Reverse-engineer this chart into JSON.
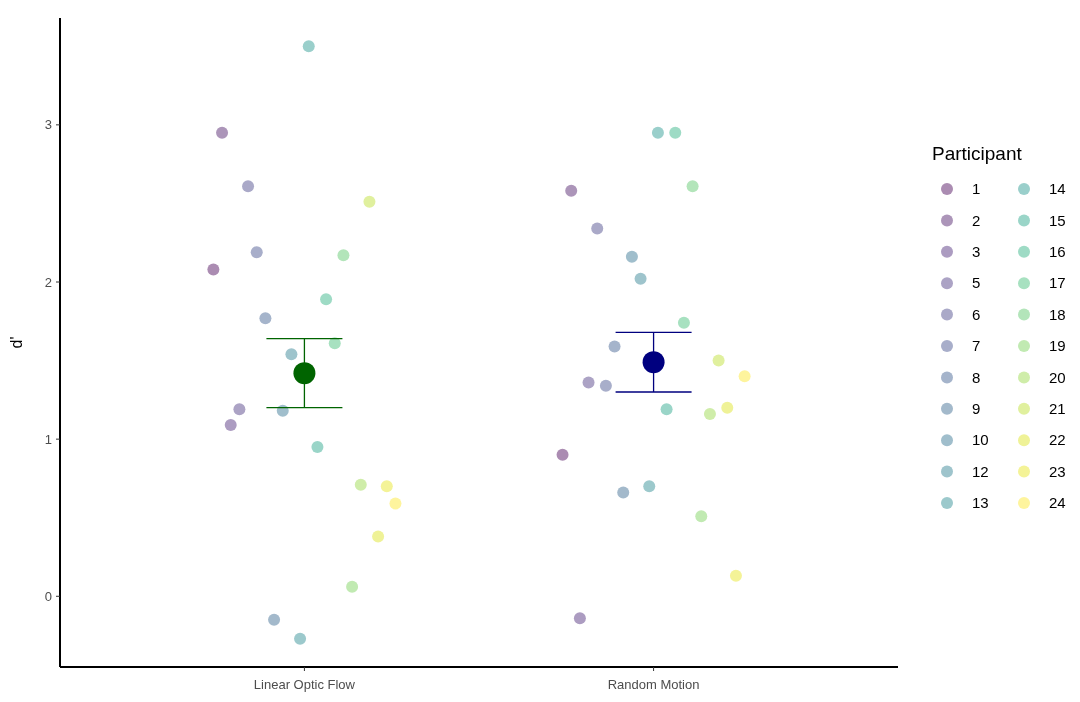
{
  "chart_data": {
    "type": "scatter",
    "ylabel": "d'",
    "legend_title": "Participant",
    "legend": "right",
    "grid": false,
    "marker": "circle",
    "categories": [
      "Linear Optic Flow",
      "Random Motion"
    ],
    "ylim": [
      -0.45,
      3.68
    ],
    "yticks": [
      0,
      1,
      2,
      3
    ],
    "series": [
      {
        "name": "1",
        "color": "#ab8cb2",
        "values": [
          2.08,
          0.9
        ]
      },
      {
        "name": "2",
        "color": "#ac95b9",
        "values": [
          2.95,
          2.58
        ]
      },
      {
        "name": "3",
        "color": "#ac9cc1",
        "values": [
          1.09,
          -0.14
        ]
      },
      {
        "name": "5",
        "color": "#aca3c5",
        "values": [
          1.19,
          1.36
        ]
      },
      {
        "name": "6",
        "color": "#aaa9c8",
        "values": [
          2.61,
          2.34
        ]
      },
      {
        "name": "7",
        "color": "#a8aeca",
        "values": [
          2.19,
          1.34
        ]
      },
      {
        "name": "8",
        "color": "#a5b4cb",
        "values": [
          1.77,
          1.59
        ]
      },
      {
        "name": "9",
        "color": "#a3b9cb",
        "values": [
          -0.15,
          0.66
        ]
      },
      {
        "name": "10",
        "color": "#a0becc",
        "values": [
          1.18,
          2.16
        ]
      },
      {
        "name": "12",
        "color": "#9ec4cc",
        "values": [
          1.54,
          2.02
        ]
      },
      {
        "name": "13",
        "color": "#9cc9cc",
        "values": [
          -0.27,
          0.7
        ]
      },
      {
        "name": "14",
        "color": "#9acfcb",
        "values": [
          3.5,
          2.95
        ]
      },
      {
        "name": "15",
        "color": "#9ad5c8",
        "values": [
          0.95,
          1.19
        ]
      },
      {
        "name": "16",
        "color": "#9edbc5",
        "values": [
          1.89,
          2.95
        ]
      },
      {
        "name": "17",
        "color": "#a7e1c0",
        "values": [
          1.61,
          1.74
        ]
      },
      {
        "name": "18",
        "color": "#b3e5ba",
        "values": [
          2.17,
          2.61
        ]
      },
      {
        "name": "19",
        "color": "#c1eab2",
        "values": [
          0.06,
          0.51
        ]
      },
      {
        "name": "20",
        "color": "#cfeda9",
        "values": [
          0.71,
          1.16
        ]
      },
      {
        "name": "21",
        "color": "#e0f09e",
        "values": [
          2.51,
          1.5
        ]
      },
      {
        "name": "22",
        "color": "#eff297",
        "values": [
          0.38,
          1.2
        ]
      },
      {
        "name": "23",
        "color": "#f4f397",
        "values": [
          0.7,
          0.13
        ]
      },
      {
        "name": "24",
        "color": "#fef49d",
        "values": [
          0.59,
          1.4
        ]
      },
      {
        "type": "scatter",
        "values": [
          1.42,
          1.49
        ],
        "colors": [
          "#006400",
          "#00007f"
        ],
        "errors": [
          [
            1.2,
            1.64
          ],
          [
            1.3,
            1.68
          ]
        ]
      }
    ]
  }
}
